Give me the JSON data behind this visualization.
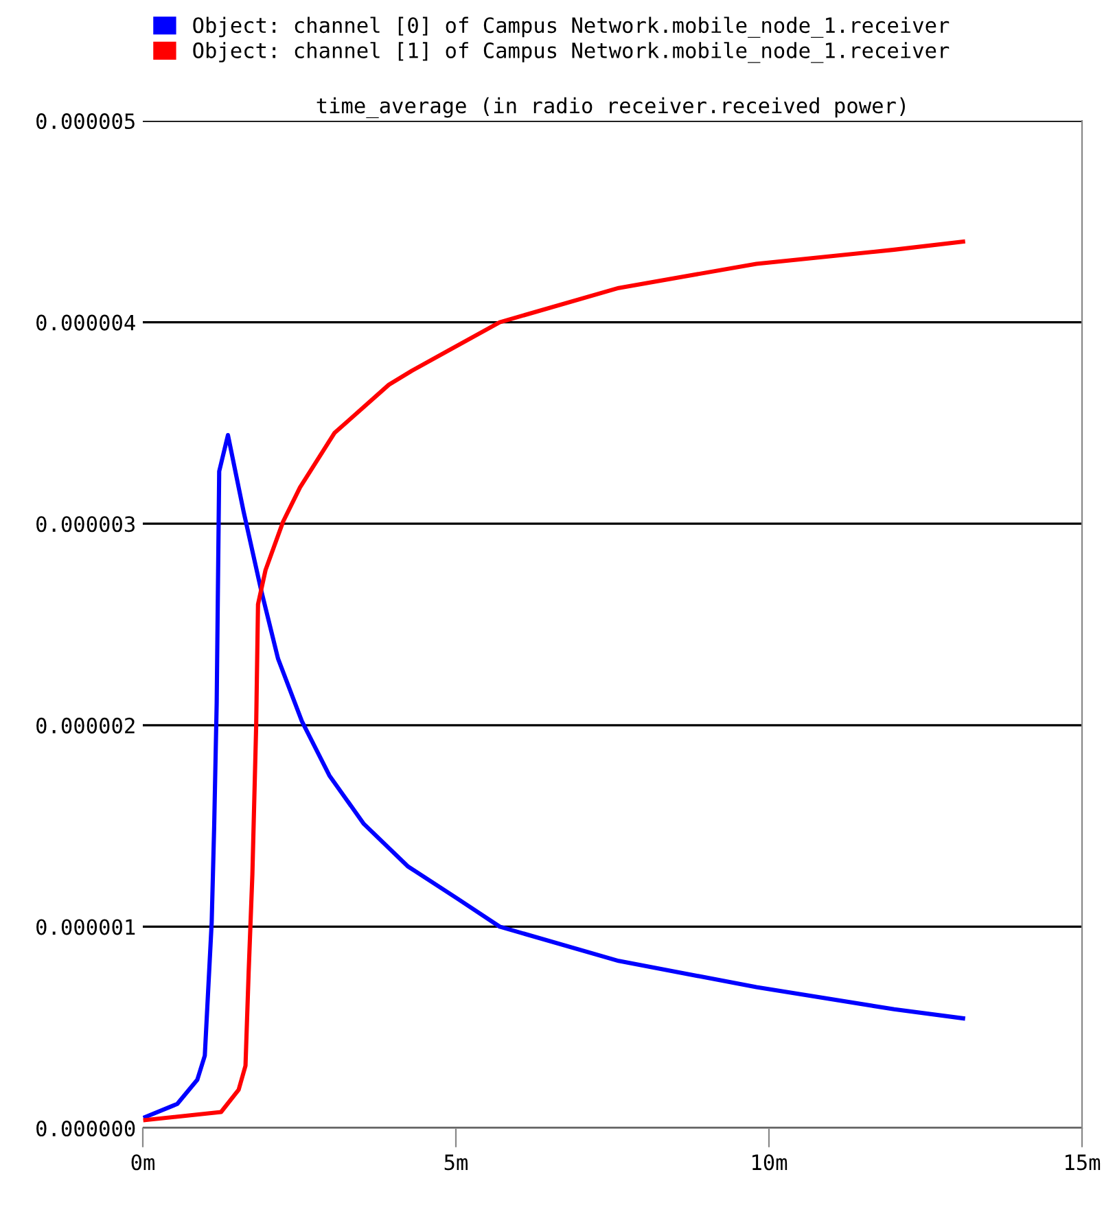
{
  "chart_data": {
    "type": "line",
    "title": "time_average (in radio receiver.received power)",
    "xlim": [
      0,
      15
    ],
    "xticks": [
      {
        "value": 0,
        "label": "0m"
      },
      {
        "value": 5,
        "label": "5m"
      },
      {
        "value": 10,
        "label": "10m"
      },
      {
        "value": 15,
        "label": "15m"
      }
    ],
    "ylim": [
      0,
      5e-06
    ],
    "yticks": [
      {
        "value": 0,
        "label": "0.000000"
      },
      {
        "value": 1e-06,
        "label": "0.000001"
      },
      {
        "value": 2e-06,
        "label": "0.000002"
      },
      {
        "value": 3e-06,
        "label": "0.000003"
      },
      {
        "value": 4e-06,
        "label": "0.000004"
      },
      {
        "value": 5e-06,
        "label": "0.000005"
      }
    ],
    "grid": "y",
    "legend": "top",
    "marker": "none",
    "line_style": "solid",
    "series": [
      {
        "name": "Object: channel [0] of Campus Network.mobile_node_1.receiver",
        "color": "#0000ff",
        "x": [
          0.04,
          0.55,
          0.87,
          0.99,
          1.1,
          1.14,
          1.18,
          1.22,
          1.36,
          1.61,
          1.89,
          2.16,
          2.54,
          2.98,
          3.53,
          4.23,
          5.02,
          5.7,
          7.6,
          9.8,
          12,
          13.1
        ],
        "values": [
          5.5e-08,
          1.2e-07,
          2.4e-07,
          3.6e-07,
          1.02e-06,
          1.5e-06,
          2.11e-06,
          3.26e-06,
          3.44e-06,
          3.06e-06,
          2.67e-06,
          2.33e-06,
          2.02e-06,
          1.75e-06,
          1.51e-06,
          1.3e-06,
          1.14e-06,
          1e-06,
          8.3e-07,
          7e-07,
          5.9e-07,
          5.45e-07
        ]
      },
      {
        "name": "Object: channel [1] of Campus Network.mobile_node_1.receiver",
        "color": "#ff0000",
        "x": [
          0.04,
          1.25,
          1.53,
          1.64,
          1.69,
          1.75,
          1.81,
          1.84,
          1.96,
          2.24,
          2.51,
          3.06,
          3.93,
          4.3,
          5.7,
          7.6,
          9.8,
          12,
          13.1
        ],
        "values": [
          4e-08,
          8e-08,
          1.9e-07,
          3.1e-07,
          7.7e-07,
          1.26e-06,
          1.99e-06,
          2.6e-06,
          2.77e-06,
          3.01e-06,
          3.18e-06,
          3.45e-06,
          3.69e-06,
          3.76e-06,
          4e-06,
          4.17e-06,
          4.29e-06,
          4.36e-06,
          4.4e-06
        ]
      }
    ]
  }
}
